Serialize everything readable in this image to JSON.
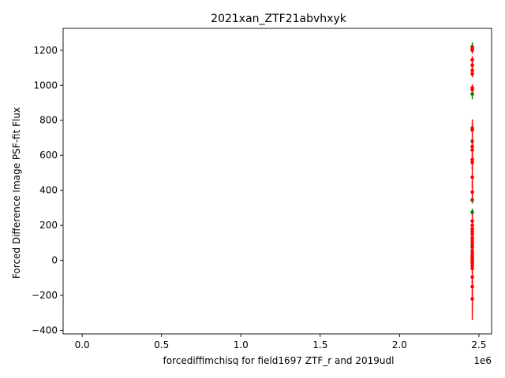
{
  "chart_data": {
    "type": "scatter",
    "title": "2021xan_ZTF21abvhxyk",
    "xlabel": "forcediffimchisq for field1697 ZTF_r and 2019udl",
    "ylabel": "Forced Difference Image PSF-fit Flux",
    "x_offset_label": "1e6",
    "xlim": [
      -0.12,
      2.58
    ],
    "ylim": [
      -420,
      1325
    ],
    "x_ticks": [
      0.0,
      0.5,
      1.0,
      1.5,
      2.0,
      2.5
    ],
    "x_tick_labels": [
      "0.0",
      "0.5",
      "1.0",
      "1.5",
      "2.0",
      "2.5"
    ],
    "y_ticks": [
      -400,
      -200,
      0,
      200,
      400,
      600,
      800,
      1000,
      1200
    ],
    "y_tick_labels": [
      "−400",
      "−200",
      "0",
      "200",
      "400",
      "600",
      "800",
      "1000",
      "1200"
    ],
    "grid": false,
    "series": [
      {
        "color": "#008000",
        "points": [
          {
            "x": 2.4585,
            "y": 1220,
            "err": 25
          },
          {
            "x": 2.4585,
            "y": 950,
            "err": 30
          },
          {
            "x": 2.4585,
            "y": 755,
            "err": 20
          },
          {
            "x": 2.4585,
            "y": 680,
            "err": 20
          },
          {
            "x": 2.4585,
            "y": 345,
            "err": 20
          },
          {
            "x": 2.4585,
            "y": 275,
            "err": 20
          },
          {
            "x": 2.4585,
            "y": 85,
            "err": 15
          }
        ]
      },
      {
        "color": "#ff0000",
        "points": [
          {
            "x": 2.4585,
            "y": 1210,
            "err": 20
          },
          {
            "x": 2.4585,
            "y": 1200,
            "err": 20
          },
          {
            "x": 2.4585,
            "y": 1145,
            "err": 20
          },
          {
            "x": 2.4585,
            "y": 1115,
            "err": 20
          },
          {
            "x": 2.4585,
            "y": 1085,
            "err": 20
          },
          {
            "x": 2.4585,
            "y": 1065,
            "err": 20
          },
          {
            "x": 2.4585,
            "y": 985,
            "err": 20
          },
          {
            "x": 2.4585,
            "y": 975,
            "err": 20
          },
          {
            "x": 2.4585,
            "y": 745,
            "err": 60
          },
          {
            "x": 2.4585,
            "y": 650,
            "err": 40
          },
          {
            "x": 2.4585,
            "y": 630,
            "err": 40
          },
          {
            "x": 2.4585,
            "y": 575,
            "err": 40
          },
          {
            "x": 2.4585,
            "y": 560,
            "err": 40
          },
          {
            "x": 2.4585,
            "y": 475,
            "err": 60
          },
          {
            "x": 2.4585,
            "y": 390,
            "err": 60
          },
          {
            "x": 2.4585,
            "y": 225,
            "err": 40
          },
          {
            "x": 2.4585,
            "y": 200,
            "err": 30
          },
          {
            "x": 2.4585,
            "y": 180,
            "err": 30
          },
          {
            "x": 2.4585,
            "y": 165,
            "err": 30
          },
          {
            "x": 2.4585,
            "y": 150,
            "err": 30
          },
          {
            "x": 2.4585,
            "y": 130,
            "err": 30
          },
          {
            "x": 2.4585,
            "y": 115,
            "err": 30
          },
          {
            "x": 2.4585,
            "y": 100,
            "err": 30
          },
          {
            "x": 2.4585,
            "y": 75,
            "err": 30
          },
          {
            "x": 2.4585,
            "y": 55,
            "err": 30
          },
          {
            "x": 2.4585,
            "y": 40,
            "err": 30
          },
          {
            "x": 2.4585,
            "y": 25,
            "err": 30
          },
          {
            "x": 2.4585,
            "y": 15,
            "err": 30
          },
          {
            "x": 2.4585,
            "y": 5,
            "err": 30
          },
          {
            "x": 2.4585,
            "y": -5,
            "err": 30
          },
          {
            "x": 2.4585,
            "y": -15,
            "err": 30
          },
          {
            "x": 2.4585,
            "y": -30,
            "err": 30
          },
          {
            "x": 2.4585,
            "y": -45,
            "err": 30
          },
          {
            "x": 2.4585,
            "y": -95,
            "err": 40
          },
          {
            "x": 2.4585,
            "y": -150,
            "err": 60
          },
          {
            "x": 2.4585,
            "y": -220,
            "err": 120
          }
        ]
      }
    ]
  }
}
